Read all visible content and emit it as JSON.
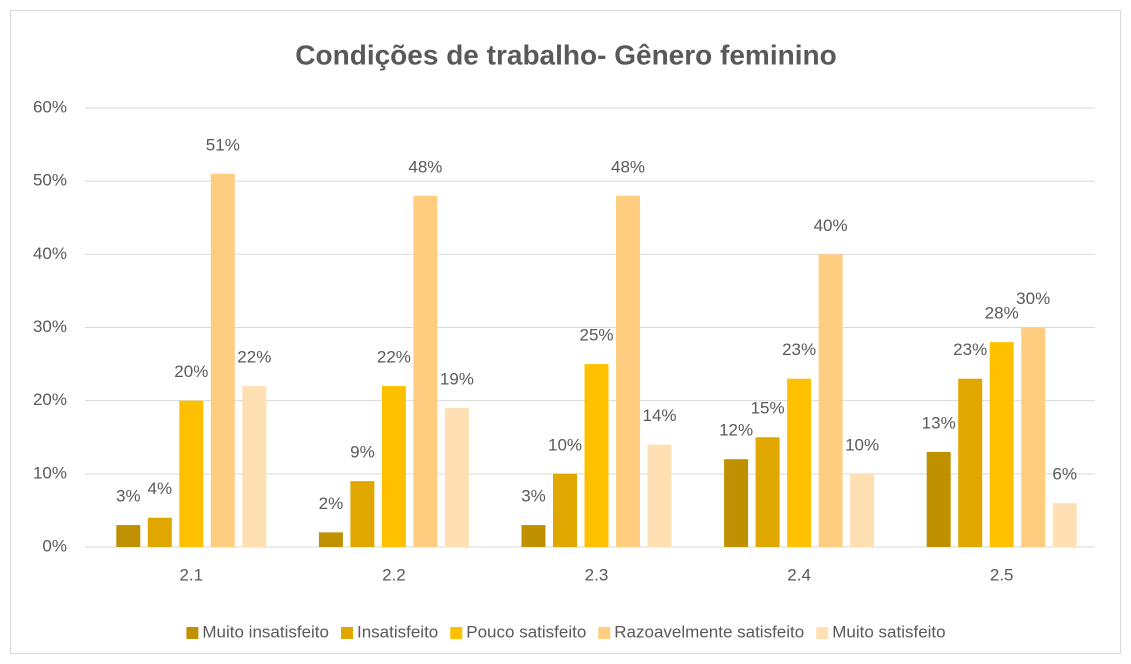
{
  "chart_data": {
    "type": "bar",
    "title": "Condições de trabalho- Gênero feminino",
    "categories": [
      "2.1",
      "2.2",
      "2.3",
      "2.4",
      "2.5"
    ],
    "series": [
      {
        "name": "Muito insatisfeito",
        "color": "#bf9000",
        "values": [
          3,
          2,
          3,
          12,
          13
        ],
        "value_labels": [
          "3%",
          "2%",
          "3%",
          "12%",
          "13%"
        ]
      },
      {
        "name": "Insatisfeito",
        "color": "#dfa700",
        "values": [
          4,
          9,
          10,
          15,
          23
        ],
        "value_labels": [
          "4%",
          "9%",
          "10%",
          "15%",
          "23%"
        ]
      },
      {
        "name": "Pouco satisfeito",
        "color": "#ffc000",
        "values": [
          20,
          22,
          25,
          23,
          28
        ],
        "value_labels": [
          "20%",
          "22%",
          "25%",
          "23%",
          "28%"
        ]
      },
      {
        "name": "Razoavelmente satisfeito",
        "color": "#ffcd7f",
        "values": [
          51,
          48,
          48,
          40,
          30
        ],
        "value_labels": [
          "51%",
          "48%",
          "48%",
          "40%",
          "30%"
        ]
      },
      {
        "name": "Muito satisfeito",
        "color": "#ffe0b2",
        "values": [
          22,
          19,
          14,
          10,
          6
        ],
        "value_labels": [
          "22%",
          "19%",
          "14%",
          "10%",
          "6%"
        ]
      }
    ],
    "ylim": [
      0,
      60
    ],
    "yticks": [
      {
        "value": 0,
        "label": "0%"
      },
      {
        "value": 10,
        "label": "10%"
      },
      {
        "value": 20,
        "label": "20%"
      },
      {
        "value": 30,
        "label": "30%"
      },
      {
        "value": 40,
        "label": "40%"
      },
      {
        "value": 50,
        "label": "50%"
      },
      {
        "value": 60,
        "label": "60%"
      }
    ],
    "grid": true,
    "legend": "bottom"
  }
}
